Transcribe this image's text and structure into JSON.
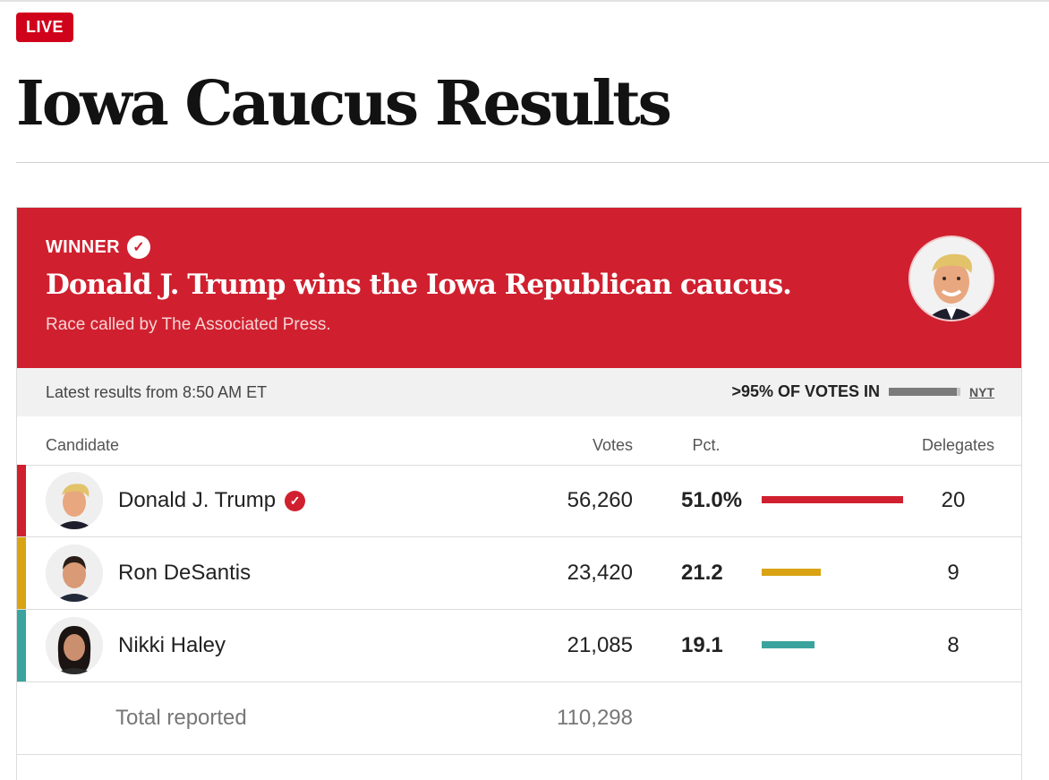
{
  "page": {
    "live_label": "LIVE",
    "title": "Iowa Caucus Results"
  },
  "banner": {
    "winner_label": "WINNER",
    "headline": "Donald J. Trump wins the Iowa Republican caucus.",
    "called_by": "Race called by The Associated Press.",
    "color": "#d0202f"
  },
  "status": {
    "latest": "Latest results from 8:50 AM ET",
    "votes_in": ">95% OF VOTES IN",
    "votes_in_fraction": 0.95,
    "source": "NYT"
  },
  "table": {
    "headers": {
      "candidate": "Candidate",
      "votes": "Votes",
      "pct": "Pct.",
      "delegates": "Delegates"
    },
    "rows": [
      {
        "name": "Donald J. Trump",
        "votes": "56,260",
        "pct": "51.0%",
        "pct_value": 51.0,
        "delegates": "20",
        "color": "#d0202f",
        "winner": true
      },
      {
        "name": "Ron DeSantis",
        "votes": "23,420",
        "pct": "21.2",
        "pct_value": 21.2,
        "delegates": "9",
        "color": "#d9a313",
        "winner": false
      },
      {
        "name": "Nikki Haley",
        "votes": "21,085",
        "pct": "19.1",
        "pct_value": 19.1,
        "delegates": "8",
        "color": "#3aa39e",
        "winner": false
      }
    ],
    "total": {
      "label": "Total reported",
      "votes": "110,298"
    }
  },
  "icons": {
    "winner_check": "check-circle-icon",
    "candidate_check": "check-circle-icon"
  }
}
